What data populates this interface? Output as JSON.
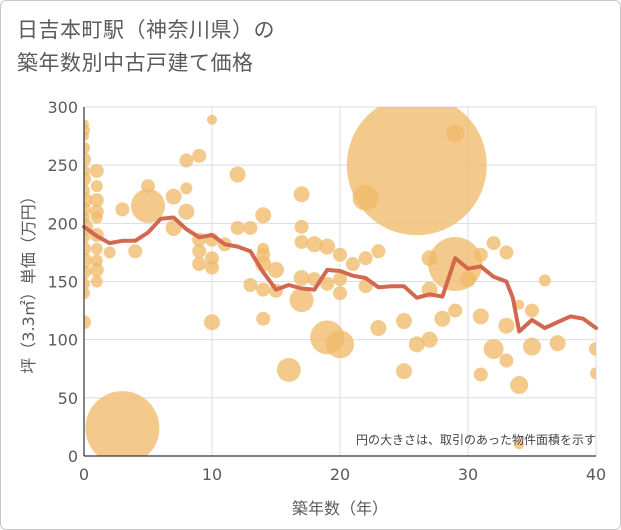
{
  "chart_data": {
    "type": "scatter",
    "title_line1": "日吉本町駅（神奈川県）の",
    "title_line2": "築年数別中古戸建て価格",
    "xlabel": "築年数（年）",
    "ylabel": "坪（3.3㎡）単価（万円）",
    "note": "円の大きさは、取引のあった物件面積を示す",
    "xlim": [
      0,
      40
    ],
    "ylim": [
      0,
      300
    ],
    "xticks": [
      0,
      10,
      20,
      30,
      40
    ],
    "yticks": [
      0,
      50,
      100,
      150,
      200,
      250,
      300
    ],
    "colors": {
      "bubble": "#f0bb6a",
      "line": "#d2694f",
      "grid": "#d8dde3"
    },
    "points": [
      {
        "x": 0,
        "y": 285,
        "s": 5
      },
      {
        "x": 0,
        "y": 280,
        "s": 6
      },
      {
        "x": 0,
        "y": 275,
        "s": 5
      },
      {
        "x": 0,
        "y": 265,
        "s": 6
      },
      {
        "x": 0,
        "y": 255,
        "s": 7
      },
      {
        "x": 0,
        "y": 245,
        "s": 6
      },
      {
        "x": 0,
        "y": 238,
        "s": 7
      },
      {
        "x": 0,
        "y": 228,
        "s": 6
      },
      {
        "x": 0,
        "y": 220,
        "s": 8
      },
      {
        "x": 0,
        "y": 212,
        "s": 7
      },
      {
        "x": 0,
        "y": 205,
        "s": 6
      },
      {
        "x": 0,
        "y": 197,
        "s": 9
      },
      {
        "x": 0,
        "y": 188,
        "s": 6
      },
      {
        "x": 0,
        "y": 178,
        "s": 7
      },
      {
        "x": 0,
        "y": 168,
        "s": 8
      },
      {
        "x": 0,
        "y": 158,
        "s": 7
      },
      {
        "x": 0,
        "y": 148,
        "s": 6
      },
      {
        "x": 0,
        "y": 140,
        "s": 6
      },
      {
        "x": 0,
        "y": 115,
        "s": 7
      },
      {
        "x": 1,
        "y": 245,
        "s": 7
      },
      {
        "x": 1,
        "y": 232,
        "s": 6
      },
      {
        "x": 1,
        "y": 220,
        "s": 7
      },
      {
        "x": 1,
        "y": 210,
        "s": 7
      },
      {
        "x": 1,
        "y": 205,
        "s": 6
      },
      {
        "x": 1,
        "y": 190,
        "s": 7
      },
      {
        "x": 1,
        "y": 178,
        "s": 6
      },
      {
        "x": 1,
        "y": 168,
        "s": 6
      },
      {
        "x": 1,
        "y": 160,
        "s": 7
      },
      {
        "x": 1,
        "y": 150,
        "s": 6
      },
      {
        "x": 2,
        "y": 175,
        "s": 6
      },
      {
        "x": 3,
        "y": 212,
        "s": 7
      },
      {
        "x": 3,
        "y": 24,
        "s": 37
      },
      {
        "x": 4,
        "y": 176,
        "s": 7
      },
      {
        "x": 5,
        "y": 232,
        "s": 7
      },
      {
        "x": 5,
        "y": 215,
        "s": 17
      },
      {
        "x": 7,
        "y": 223,
        "s": 8
      },
      {
        "x": 7,
        "y": 196,
        "s": 8
      },
      {
        "x": 8,
        "y": 254,
        "s": 7
      },
      {
        "x": 8,
        "y": 230,
        "s": 6
      },
      {
        "x": 8,
        "y": 210,
        "s": 8
      },
      {
        "x": 9,
        "y": 258,
        "s": 7
      },
      {
        "x": 9,
        "y": 186,
        "s": 7
      },
      {
        "x": 9,
        "y": 176,
        "s": 7
      },
      {
        "x": 9,
        "y": 165,
        "s": 7
      },
      {
        "x": 10,
        "y": 289,
        "s": 5
      },
      {
        "x": 10,
        "y": 186,
        "s": 7
      },
      {
        "x": 10,
        "y": 170,
        "s": 7
      },
      {
        "x": 10,
        "y": 162,
        "s": 7
      },
      {
        "x": 10,
        "y": 115,
        "s": 8
      },
      {
        "x": 11,
        "y": 182,
        "s": 7
      },
      {
        "x": 12,
        "y": 242,
        "s": 8
      },
      {
        "x": 12,
        "y": 196,
        "s": 7
      },
      {
        "x": 13,
        "y": 196,
        "s": 7
      },
      {
        "x": 13,
        "y": 147,
        "s": 7
      },
      {
        "x": 14,
        "y": 207,
        "s": 8
      },
      {
        "x": 14,
        "y": 178,
        "s": 6
      },
      {
        "x": 14,
        "y": 173,
        "s": 7
      },
      {
        "x": 14,
        "y": 165,
        "s": 8
      },
      {
        "x": 14,
        "y": 143,
        "s": 7
      },
      {
        "x": 14,
        "y": 118,
        "s": 7
      },
      {
        "x": 15,
        "y": 160,
        "s": 8
      },
      {
        "x": 15,
        "y": 142,
        "s": 7
      },
      {
        "x": 16,
        "y": 74,
        "s": 12
      },
      {
        "x": 17,
        "y": 225,
        "s": 8
      },
      {
        "x": 17,
        "y": 197,
        "s": 7
      },
      {
        "x": 17,
        "y": 184,
        "s": 7
      },
      {
        "x": 17,
        "y": 153,
        "s": 8
      },
      {
        "x": 17,
        "y": 134,
        "s": 12
      },
      {
        "x": 18,
        "y": 182,
        "s": 8
      },
      {
        "x": 18,
        "y": 152,
        "s": 7
      },
      {
        "x": 19,
        "y": 180,
        "s": 8
      },
      {
        "x": 19,
        "y": 148,
        "s": 7
      },
      {
        "x": 19,
        "y": 102,
        "s": 17
      },
      {
        "x": 20,
        "y": 173,
        "s": 7
      },
      {
        "x": 20,
        "y": 152,
        "s": 7
      },
      {
        "x": 20,
        "y": 140,
        "s": 7
      },
      {
        "x": 20,
        "y": 96,
        "s": 14
      },
      {
        "x": 21,
        "y": 165,
        "s": 7
      },
      {
        "x": 22,
        "y": 222,
        "s": 13
      },
      {
        "x": 22,
        "y": 170,
        "s": 7
      },
      {
        "x": 22,
        "y": 146,
        "s": 7
      },
      {
        "x": 23,
        "y": 176,
        "s": 7
      },
      {
        "x": 23,
        "y": 110,
        "s": 8
      },
      {
        "x": 25,
        "y": 116,
        "s": 8
      },
      {
        "x": 25,
        "y": 73,
        "s": 8
      },
      {
        "x": 26,
        "y": 250,
        "s": 70
      },
      {
        "x": 26,
        "y": 96,
        "s": 8
      },
      {
        "x": 27,
        "y": 170,
        "s": 8
      },
      {
        "x": 27,
        "y": 143,
        "s": 8
      },
      {
        "x": 27,
        "y": 100,
        "s": 8
      },
      {
        "x": 28,
        "y": 118,
        "s": 8
      },
      {
        "x": 29,
        "y": 277,
        "s": 9
      },
      {
        "x": 29,
        "y": 165,
        "s": 27
      },
      {
        "x": 29,
        "y": 125,
        "s": 7
      },
      {
        "x": 30,
        "y": 152,
        "s": 8
      },
      {
        "x": 31,
        "y": 173,
        "s": 7
      },
      {
        "x": 31,
        "y": 120,
        "s": 8
      },
      {
        "x": 31,
        "y": 70,
        "s": 7
      },
      {
        "x": 32,
        "y": 183,
        "s": 7
      },
      {
        "x": 32,
        "y": 92,
        "s": 10
      },
      {
        "x": 33,
        "y": 175,
        "s": 7
      },
      {
        "x": 33,
        "y": 112,
        "s": 8
      },
      {
        "x": 33,
        "y": 82,
        "s": 7
      },
      {
        "x": 34,
        "y": 130,
        "s": 5
      },
      {
        "x": 34,
        "y": 61,
        "s": 9
      },
      {
        "x": 34,
        "y": 10,
        "s": 5
      },
      {
        "x": 35,
        "y": 125,
        "s": 7
      },
      {
        "x": 35,
        "y": 94,
        "s": 9
      },
      {
        "x": 36,
        "y": 151,
        "s": 6
      },
      {
        "x": 37,
        "y": 97,
        "s": 8
      },
      {
        "x": 40,
        "y": 92,
        "s": 7
      },
      {
        "x": 40,
        "y": 71,
        "s": 6
      }
    ],
    "trend": {
      "x": [
        0,
        1,
        2,
        3,
        4,
        5,
        6,
        7,
        8,
        9,
        10,
        11,
        12,
        13,
        14,
        15,
        16,
        17,
        18,
        19,
        20,
        21,
        22,
        23,
        24,
        25,
        26,
        27,
        28,
        29,
        30,
        31,
        32,
        33,
        33.5,
        34,
        35,
        36,
        37,
        38,
        39,
        40
      ],
      "y": [
        197,
        189,
        183,
        185,
        185,
        192,
        204,
        205,
        195,
        188,
        190,
        182,
        180,
        176,
        158,
        143,
        147,
        144,
        143,
        160,
        159,
        155,
        153,
        145,
        146,
        146,
        136,
        139,
        137,
        170,
        161,
        163,
        154,
        150,
        136,
        107,
        117,
        110,
        115,
        120,
        118,
        110
      ]
    }
  }
}
